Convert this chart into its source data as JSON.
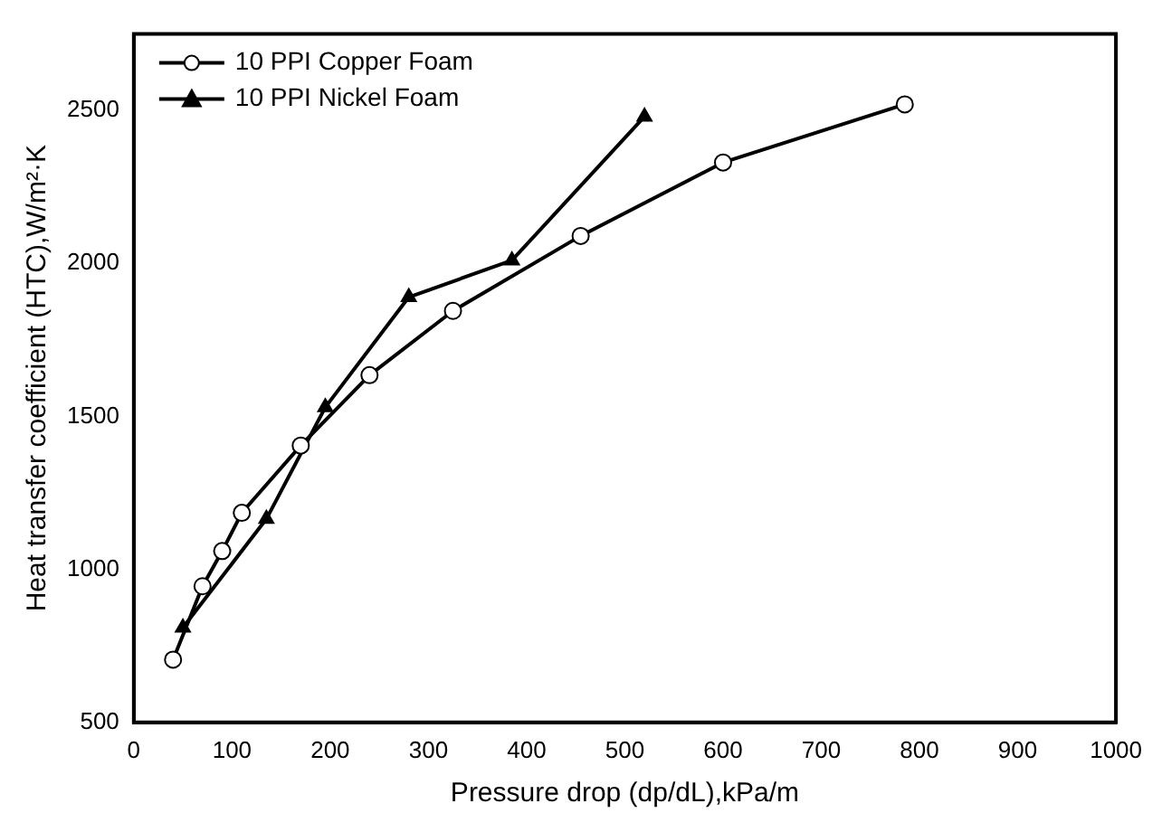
{
  "chart_data": {
    "type": "line",
    "xlabel": "Pressure drop (dp/dL),kPa/m",
    "ylabel": "Heat transfer coefficient (HTC),W/m²·K",
    "series": [
      {
        "name": "10 PPI Copper Foam",
        "color": "#000000",
        "marker": "circle",
        "x": [
          40,
          70,
          90,
          110,
          170,
          240,
          325,
          455,
          600,
          785
        ],
        "values": [
          705,
          945,
          1060,
          1185,
          1405,
          1635,
          1845,
          2090,
          2330,
          2520
        ]
      },
      {
        "name": "10 PPI Nickel Foam",
        "color": "#000000",
        "marker": "triangle",
        "x": [
          50,
          135,
          195,
          280,
          385,
          520
        ],
        "values": [
          810,
          1165,
          1530,
          1890,
          2010,
          2480
        ]
      }
    ],
    "xlim": [
      0,
      1000
    ],
    "xticks": [
      0,
      100,
      200,
      300,
      400,
      500,
      600,
      700,
      800,
      900,
      1000
    ],
    "ylim": [
      500,
      2750
    ],
    "yticks": [
      500,
      1000,
      1500,
      2000,
      2500
    ],
    "grid": false,
    "legend": "top left",
    "line_style": "solid"
  }
}
